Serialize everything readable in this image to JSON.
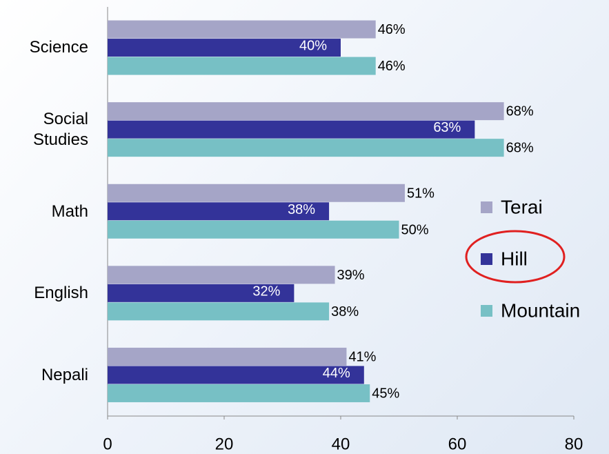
{
  "chart_data": {
    "type": "hbar",
    "categories": [
      "Science",
      "Social Studies",
      "Math",
      "English",
      "Nepali"
    ],
    "series": [
      {
        "name": "Terai",
        "color": "#a5a5c7",
        "values": [
          46,
          68,
          51,
          39,
          41
        ],
        "value_labels": [
          "46%",
          "68%",
          "51%",
          "39%",
          "41%"
        ]
      },
      {
        "name": "Hill",
        "color": "#333399",
        "values": [
          40,
          63,
          38,
          32,
          44
        ],
        "value_labels": [
          "40%",
          "63%",
          "38%",
          "32%",
          "44%"
        ]
      },
      {
        "name": "Mountain",
        "color": "#77c0c5",
        "values": [
          46,
          68,
          50,
          38,
          45
        ],
        "value_labels": [
          "46%",
          "68%",
          "50%",
          "38%",
          "45%"
        ]
      }
    ],
    "xlim": [
      0,
      80
    ],
    "xticks": [
      0,
      20,
      40,
      60,
      80
    ],
    "legend": "right"
  }
}
